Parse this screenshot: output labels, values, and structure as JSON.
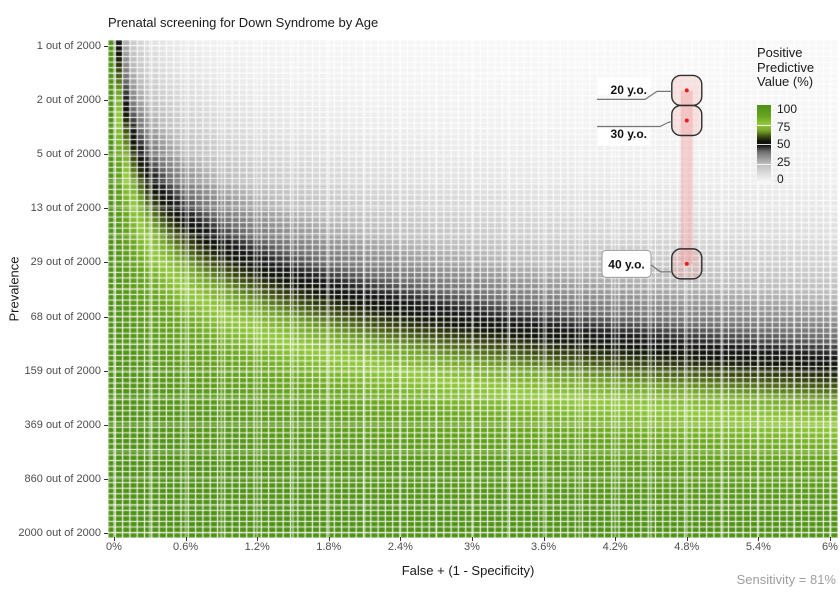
{
  "chart_data": {
    "type": "heatmap",
    "title": "Prenatal screening for Down Syndrome by Age",
    "xlabel": "False + (1 - Specificity)",
    "ylabel": "Prevalence",
    "caption": "Sensitivity = 81%",
    "x_tick_labels": [
      "0%",
      "0.6%",
      "1.2%",
      "1.8%",
      "2.4%",
      "3%",
      "3.6%",
      "4.2%",
      "4.8%",
      "5.4%",
      "6%"
    ],
    "y_tick_labels": [
      "1 out of 2000",
      "2 out of 2000",
      "5 out of 2000",
      "13 out of 2000",
      "29 out of 2000",
      "68 out of 2000",
      "159 out of 2000",
      "369 out of 2000",
      "860 out of 2000",
      "2000 out of 2000"
    ],
    "x_axis_pct": {
      "min": 0,
      "max": 6,
      "tick_step": 0.6,
      "minor_step": 0.3
    },
    "y_axis": {
      "scale": "log10",
      "min_per_2000": 1,
      "max_per_2000": 2000,
      "ticks_per_2000": [
        1,
        2,
        5,
        13,
        29,
        68,
        159,
        369,
        860,
        2000
      ]
    },
    "sensitivity": 0.81,
    "ppv_formula": "PPV = sens*prev / (sens*prev + fpr*(1 - prev))",
    "grid": {
      "cols": 100,
      "rows": 90
    },
    "colormap_stops": [
      [
        0,
        "#fafafa"
      ],
      [
        5,
        "#eeeeee"
      ],
      [
        25,
        "#bcbcbc"
      ],
      [
        40,
        "#6f6f6f"
      ],
      [
        48,
        "#161616"
      ],
      [
        53,
        "#0d1206"
      ],
      [
        59,
        "#39470f"
      ],
      [
        67,
        "#74a42b"
      ],
      [
        75,
        "#94c93e"
      ],
      [
        85,
        "#69a51d"
      ],
      [
        100,
        "#4f9016"
      ]
    ],
    "legend": {
      "title": "Positive Predictive Value (%)",
      "tick_labels": [
        100,
        75,
        50,
        25,
        0
      ]
    },
    "highlight": {
      "fpr_pct": 4.8,
      "band_color": "#f19999"
    },
    "annotations": [
      {
        "label": "20 y.o.",
        "prev_per_2000": 2,
        "fpr_pct": 4.8
      },
      {
        "label": "30 y.o.",
        "prev_per_2000": 3.2,
        "fpr_pct": 4.8
      },
      {
        "label": "40 y.o.",
        "prev_per_2000": 30,
        "fpr_pct": 4.8
      }
    ]
  },
  "colors": {
    "tick_label": "#4d4d4d",
    "title": "#1a1a1a",
    "caption": "#9e9e9e",
    "dot": "#e02020",
    "marker_stroke": "#2f2f2f",
    "marker_fill": "#f4a0a0",
    "connector": "#777777",
    "label_text": "#111111",
    "label_box_stroke": "#999999"
  }
}
